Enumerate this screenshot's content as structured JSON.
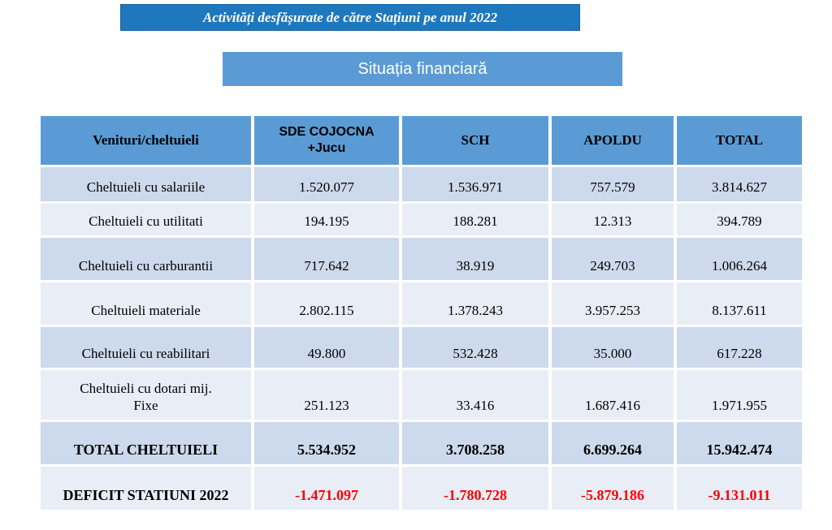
{
  "banners": {
    "title": {
      "text": "Activități desfășurate de către Stațiuni pe anul 2022",
      "bg": "#1e78be",
      "text_color": "#ffffff"
    },
    "subtitle": {
      "text": "Situația financiară",
      "bg": "#5b9bd5",
      "text_color": "#ffffff"
    }
  },
  "table": {
    "header_bg": "#5b9bd5",
    "band_dark": "#cdd9ec",
    "band_light": "#e9edf6",
    "negative_color": "#ff0000",
    "columns": [
      "Venituri/cheltuieli",
      "SDE COJOCNA\n+Jucu",
      "SCH",
      "APOLDU",
      "TOTAL"
    ],
    "rows": [
      {
        "label": "Cheltuieli cu salariile",
        "values": [
          "1.520.077",
          "1.536.971",
          "757.579",
          "3.814.627"
        ],
        "emphasis": false,
        "negative": false
      },
      {
        "label": "Cheltuieli cu utilitati",
        "values": [
          "194.195",
          "188.281",
          "12.313",
          "394.789"
        ],
        "emphasis": false,
        "negative": false
      },
      {
        "label": "Cheltuieli cu carburantii",
        "values": [
          "717.642",
          "38.919",
          "249.703",
          "1.006.264"
        ],
        "emphasis": false,
        "negative": false
      },
      {
        "label": "Cheltuieli materiale",
        "values": [
          "2.802.115",
          "1.378.243",
          "3.957.253",
          "8.137.611"
        ],
        "emphasis": false,
        "negative": false
      },
      {
        "label": "Cheltuieli cu reabilitari",
        "values": [
          "49.800",
          "532.428",
          "35.000",
          "617.228"
        ],
        "emphasis": false,
        "negative": false
      },
      {
        "label": "Cheltuieli cu dotari mij.\nFixe",
        "values": [
          "251.123",
          "33.416",
          "1.687.416",
          "1.971.955"
        ],
        "emphasis": false,
        "negative": false
      },
      {
        "label": "TOTAL CHELTUIELI",
        "values": [
          "5.534.952",
          "3.708.258",
          "6.699.264",
          "15.942.474"
        ],
        "emphasis": true,
        "negative": false
      },
      {
        "label": "DEFICIT STATIUNI 2022",
        "values": [
          "-1.471.097",
          "-1.780.728",
          "-5.879.186",
          "-9.131.011"
        ],
        "emphasis": true,
        "negative": true
      }
    ]
  }
}
